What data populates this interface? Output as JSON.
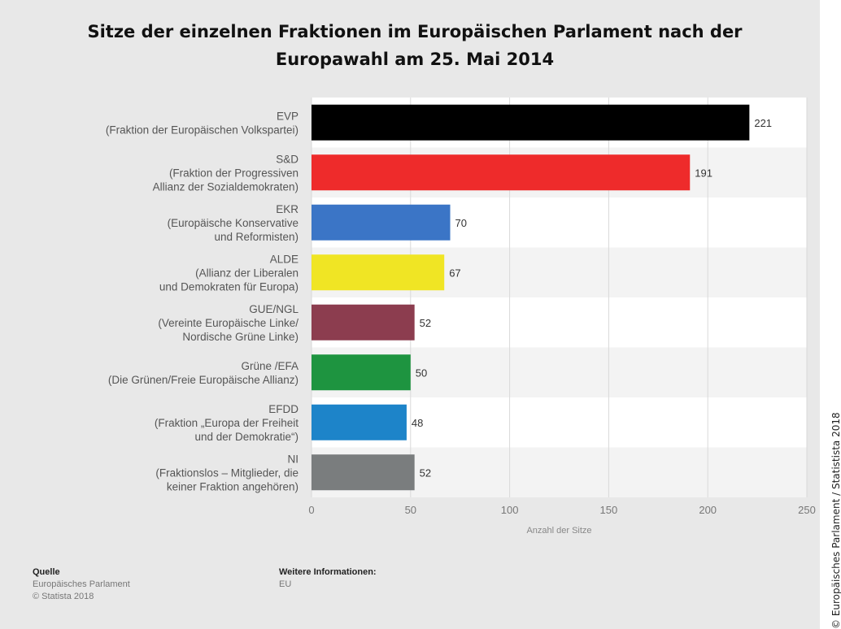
{
  "chart_data": {
    "type": "bar",
    "orientation": "horizontal",
    "title": "Sitze der einzelnen Fraktionen im Europäischen Parlament nach der Europawahl am 25. Mai 2014",
    "xlabel": "Anzahl der Sitze",
    "xlim": [
      0,
      250
    ],
    "ticks": [
      0,
      50,
      100,
      150,
      200,
      250
    ],
    "grid": true,
    "categories": [
      {
        "lines": [
          "EVP",
          "(Fraktion der Europäischen Volkspartei)"
        ],
        "value": 221,
        "color": "#000000"
      },
      {
        "lines": [
          "S&D",
          "(Fraktion der Progressiven",
          "Allianz der Sozialdemokraten)"
        ],
        "value": 191,
        "color": "#ee2b2b"
      },
      {
        "lines": [
          "EKR",
          "(Europäische Konservative",
          "und Reformisten)"
        ],
        "value": 70,
        "color": "#3b75c6"
      },
      {
        "lines": [
          "ALDE",
          "(Allianz der Liberalen",
          "und Demokraten für Europa)"
        ],
        "value": 67,
        "color": "#f0e524"
      },
      {
        "lines": [
          "GUE/NGL",
          "(Vereinte Europäische Linke/",
          "Nordische Grüne Linke)"
        ],
        "value": 52,
        "color": "#8c3d4f"
      },
      {
        "lines": [
          "Grüne /EFA",
          "(Die Grünen/Freie Europäische Allianz)"
        ],
        "value": 50,
        "color": "#1e9440"
      },
      {
        "lines": [
          "EFDD",
          "(Fraktion „Europa der Freiheit",
          "und der Demokratie“)"
        ],
        "value": 48,
        "color": "#1d84c9"
      },
      {
        "lines": [
          "NI",
          "(Fraktionslos – Mitglieder, die",
          "keiner Fraktion angehören)"
        ],
        "value": 52,
        "color": "#7a7d7e"
      }
    ]
  },
  "source": {
    "heading": "Quelle",
    "line1": "Europäisches Parlament",
    "line2": "© Statista 2018"
  },
  "info": {
    "heading": "Weitere Informationen:",
    "line1": "EU"
  },
  "copyright": "© Europäisches Parlament / Statistista 2018"
}
